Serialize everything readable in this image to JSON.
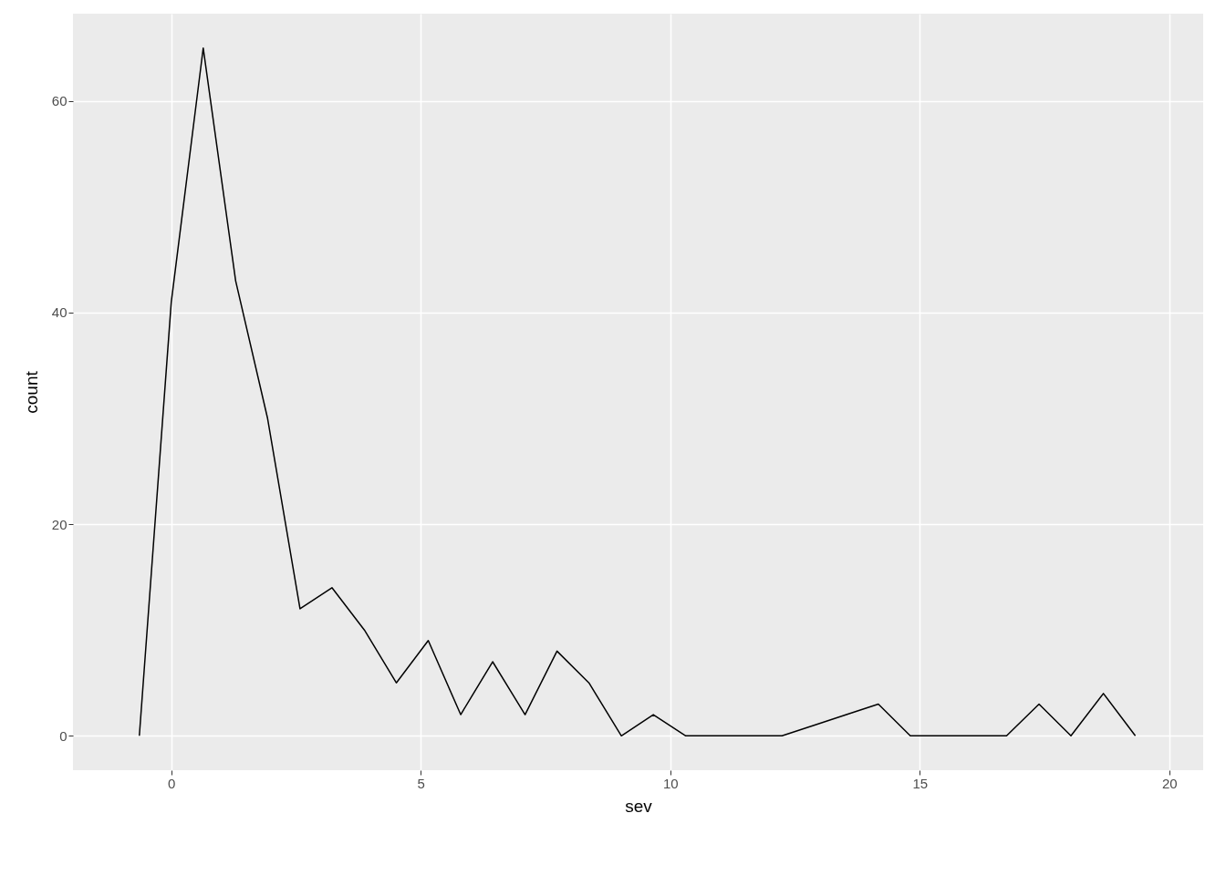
{
  "chart_data": {
    "type": "line",
    "xlabel": "sev",
    "ylabel": "count",
    "x": [
      -0.64,
      0,
      0.64,
      1.29,
      1.93,
      2.58,
      3.22,
      3.87,
      4.51,
      5.15,
      5.8,
      6.44,
      7.09,
      7.73,
      8.37,
      9.02,
      9.66,
      10.31,
      10.95,
      11.59,
      12.24,
      12.88,
      13.53,
      14.17,
      14.81,
      15.46,
      16.1,
      16.74,
      17.39,
      18.03,
      18.68,
      19.32
    ],
    "series": [
      {
        "color": "#000000",
        "values": [
          0,
          41,
          65,
          43,
          30,
          12,
          14,
          10,
          5,
          9,
          2,
          7,
          2,
          8,
          5,
          0,
          2,
          0,
          0,
          0,
          0,
          1,
          2,
          3,
          0,
          0,
          0,
          0,
          3,
          0,
          4,
          0
        ]
      }
    ],
    "xlim": [
      -1.97,
      20.68
    ],
    "xticks": [
      0,
      5,
      10,
      15,
      20
    ],
    "ylim": [
      -3.25,
      68.25
    ],
    "yticks": [
      0,
      20,
      40,
      60
    ],
    "grid": true,
    "marker": "none",
    "line_style": "solid"
  }
}
